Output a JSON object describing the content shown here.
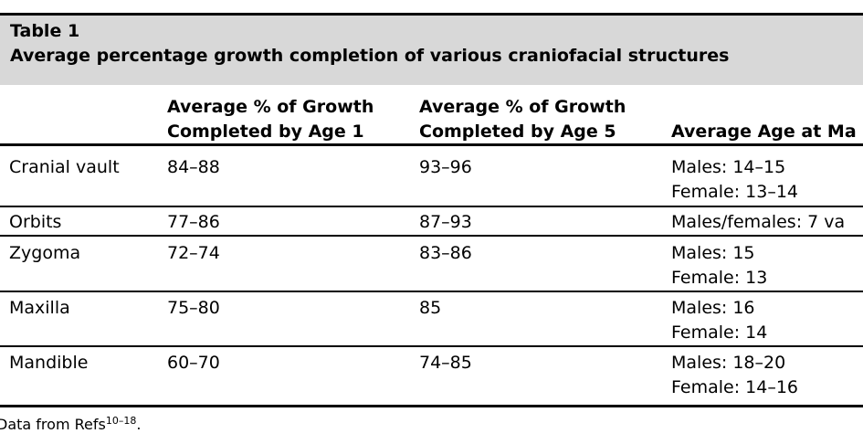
{
  "table": {
    "label": "Table 1",
    "title": "Average percentage growth completion of various craniofacial structures",
    "headers": {
      "col1": [
        "Average % of Growth",
        "Completed by Age 1"
      ],
      "col2": [
        "Average % of Growth",
        "Completed by Age 5"
      ],
      "col3": "Average Age at Ma"
    },
    "rows": [
      {
        "structure": "Cranial vault",
        "age1": "84–88",
        "age5": "93–96",
        "maturity": [
          "Males: 14–15",
          "Female: 13–14"
        ]
      },
      {
        "structure": "Orbits",
        "age1": "77–86",
        "age5": "87–93",
        "maturity": [
          "Males/females: 7 va"
        ]
      },
      {
        "structure": "Zygoma",
        "age1": "72–74",
        "age5": "83–86",
        "maturity": [
          "Males: 15",
          "Female: 13"
        ]
      },
      {
        "structure": "Maxilla",
        "age1": "75–80",
        "age5": "85",
        "maturity": [
          "Males: 16",
          "Female: 14"
        ]
      },
      {
        "structure": "Mandible",
        "age1": "60–70",
        "age5": "74–85",
        "maturity": [
          "Males: 18–20",
          "Female: 14–16"
        ]
      }
    ],
    "footnote": {
      "text": "Data from Refs",
      "refs": "10–18",
      "end": "."
    }
  }
}
